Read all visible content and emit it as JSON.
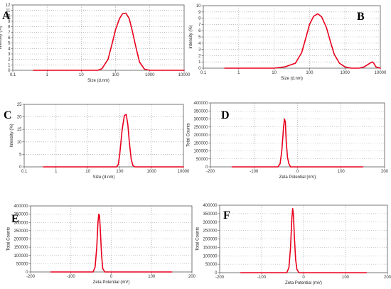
{
  "chart_data": [
    {
      "panel": "A",
      "type": "line",
      "xscale": "log",
      "xlim": [
        0.1,
        10000
      ],
      "ylim": [
        0,
        12
      ],
      "xticks": [
        0.1,
        1,
        10,
        100,
        1000,
        10000
      ],
      "yticks": [
        0,
        1,
        2,
        3,
        4,
        5,
        6,
        7,
        8,
        9,
        10,
        11,
        12
      ],
      "xtick_labels": [
        "0.1",
        "1",
        "10",
        "100",
        "1000",
        "10000"
      ],
      "ytick_labels": [
        "0",
        "1",
        "2",
        "3",
        "4",
        "5",
        "6",
        "7",
        "8",
        "9",
        "10",
        "11",
        "12"
      ],
      "xlabel": "Size (d.nm)",
      "ylabel": "Intensity (%)",
      "grid": true,
      "color": "#e8001c",
      "series": [
        {
          "x": [
            0.4,
            30,
            40,
            60,
            80,
            100,
            130,
            160,
            200,
            250,
            300,
            400,
            500,
            700,
            1000,
            10000
          ],
          "y": [
            0,
            0,
            0.3,
            2,
            5,
            7.5,
            9.5,
            10.4,
            10.5,
            9.5,
            7.5,
            4,
            1.5,
            0.2,
            0,
            0
          ]
        }
      ]
    },
    {
      "panel": "B",
      "type": "line",
      "xscale": "log",
      "xlim": [
        0.1,
        10000
      ],
      "ylim": [
        0,
        10
      ],
      "xticks": [
        0.1,
        1,
        10,
        100,
        1000,
        10000
      ],
      "yticks": [
        0,
        1,
        2,
        3,
        4,
        5,
        6,
        7,
        8,
        9,
        10
      ],
      "xtick_labels": [
        "0.1",
        "1",
        "10",
        "100",
        "1000",
        "10000"
      ],
      "ytick_labels": [
        "0",
        "1",
        "2",
        "3",
        "4",
        "5",
        "6",
        "7",
        "8",
        "9",
        "10"
      ],
      "xlabel": "Size (d.nm)",
      "ylabel": "Intensity (%)",
      "grid": true,
      "color": "#e8001c",
      "series": [
        {
          "x": [
            0.4,
            10,
            20,
            40,
            60,
            80,
            100,
            130,
            170,
            220,
            300,
            400,
            500,
            700,
            1000,
            1500,
            2500,
            3500,
            4500,
            5500,
            6000,
            6500,
            7500,
            10000
          ],
          "y": [
            0,
            0,
            0.2,
            0.8,
            2.5,
            5,
            7,
            8.3,
            8.7,
            8.2,
            6.5,
            4,
            2.2,
            0.8,
            0.2,
            0,
            0,
            0.2,
            0.6,
            0.9,
            1.0,
            0.8,
            0.2,
            0
          ]
        }
      ]
    },
    {
      "panel": "C",
      "type": "line",
      "xscale": "log",
      "xlim": [
        0.1,
        10000
      ],
      "ylim": [
        0,
        25
      ],
      "xticks": [
        0.1,
        1,
        10,
        100,
        1000,
        10000
      ],
      "yticks": [
        0,
        5,
        10,
        15,
        20,
        25
      ],
      "xtick_labels": [
        "0.1",
        "1",
        "10",
        "100",
        "1000",
        "10000"
      ],
      "ytick_labels": [
        "0",
        "5",
        "10",
        "15",
        "20",
        "25"
      ],
      "xlabel": "Size (d.nm)",
      "ylabel": "Intensity (%)",
      "grid": true,
      "color": "#e8001c",
      "series": [
        {
          "x": [
            0.4,
            80,
            90,
            100,
            120,
            140,
            160,
            180,
            200,
            230,
            260,
            300,
            10000
          ],
          "y": [
            0,
            0,
            1,
            5,
            15,
            20.5,
            21,
            17,
            10,
            3,
            0.5,
            0,
            0
          ]
        }
      ]
    },
    {
      "panel": "D",
      "type": "line",
      "xscale": "linear",
      "xlim": [
        -200,
        200
      ],
      "ylim": [
        0,
        400000
      ],
      "xticks": [
        -200,
        -100,
        0,
        100,
        200
      ],
      "yticks": [
        0,
        50000,
        100000,
        150000,
        200000,
        250000,
        300000,
        350000,
        400000
      ],
      "xtick_labels": [
        "-200",
        "-100",
        "0",
        "100",
        "200"
      ],
      "ytick_labels": [
        "0",
        "50000",
        "100000",
        "150000",
        "200000",
        "250000",
        "300000",
        "350000",
        "400000"
      ],
      "xlabel": "Zeta Potential (mV)",
      "ylabel": "Total Counts",
      "grid": true,
      "color": "#e8001c",
      "series": [
        {
          "x": [
            -150,
            -45,
            -40,
            -36,
            -32,
            -30,
            -28,
            -26,
            -23,
            -20,
            -16,
            150
          ],
          "y": [
            0,
            0,
            20000,
            100000,
            250000,
            300000,
            280000,
            160000,
            60000,
            20000,
            0,
            0
          ]
        }
      ]
    },
    {
      "panel": "E",
      "type": "line",
      "xscale": "linear",
      "xlim": [
        -200,
        200
      ],
      "ylim": [
        0,
        400000
      ],
      "xticks": [
        -200,
        -100,
        0,
        100,
        200
      ],
      "yticks": [
        0,
        50000,
        100000,
        150000,
        200000,
        250000,
        300000,
        350000,
        400000
      ],
      "xtick_labels": [
        "-200",
        "-100",
        "0",
        "100",
        "200"
      ],
      "ytick_labels": [
        "0",
        "50000",
        "100000",
        "150000",
        "200000",
        "250000",
        "300000",
        "350000",
        "400000"
      ],
      "xlabel": "Zeta Potential (mV)",
      "ylabel": "Total Counts",
      "grid": true,
      "color": "#e8001c",
      "series": [
        {
          "x": [
            -150,
            -45,
            -40,
            -36,
            -33,
            -31,
            -29,
            -27,
            -24,
            -21,
            -16,
            150
          ],
          "y": [
            0,
            0,
            30000,
            150000,
            300000,
            350000,
            340000,
            250000,
            100000,
            20000,
            0,
            0
          ]
        }
      ]
    },
    {
      "panel": "F",
      "type": "line",
      "xscale": "linear",
      "xlim": [
        -200,
        200
      ],
      "ylim": [
        0,
        400000
      ],
      "xticks": [
        -200,
        -100,
        0,
        100,
        200
      ],
      "yticks": [
        0,
        50000,
        100000,
        150000,
        200000,
        250000,
        300000,
        350000,
        400000
      ],
      "xtick_labels": [
        "-200",
        "-100",
        "0",
        "100",
        "200"
      ],
      "ytick_labels": [
        "0",
        "50000",
        "100000",
        "150000",
        "200000",
        "250000",
        "300000",
        "350000",
        "400000"
      ],
      "xlabel": "Zeta Potential (mV)",
      "ylabel": "Total Counts",
      "grid": true,
      "color": "#e8001c",
      "series": [
        {
          "x": [
            -150,
            -40,
            -35,
            -31,
            -28,
            -26,
            -24,
            -22,
            -19,
            -16,
            -11,
            150
          ],
          "y": [
            0,
            0,
            30000,
            150000,
            320000,
            380000,
            340000,
            220000,
            80000,
            20000,
            0,
            0
          ]
        }
      ]
    }
  ]
}
